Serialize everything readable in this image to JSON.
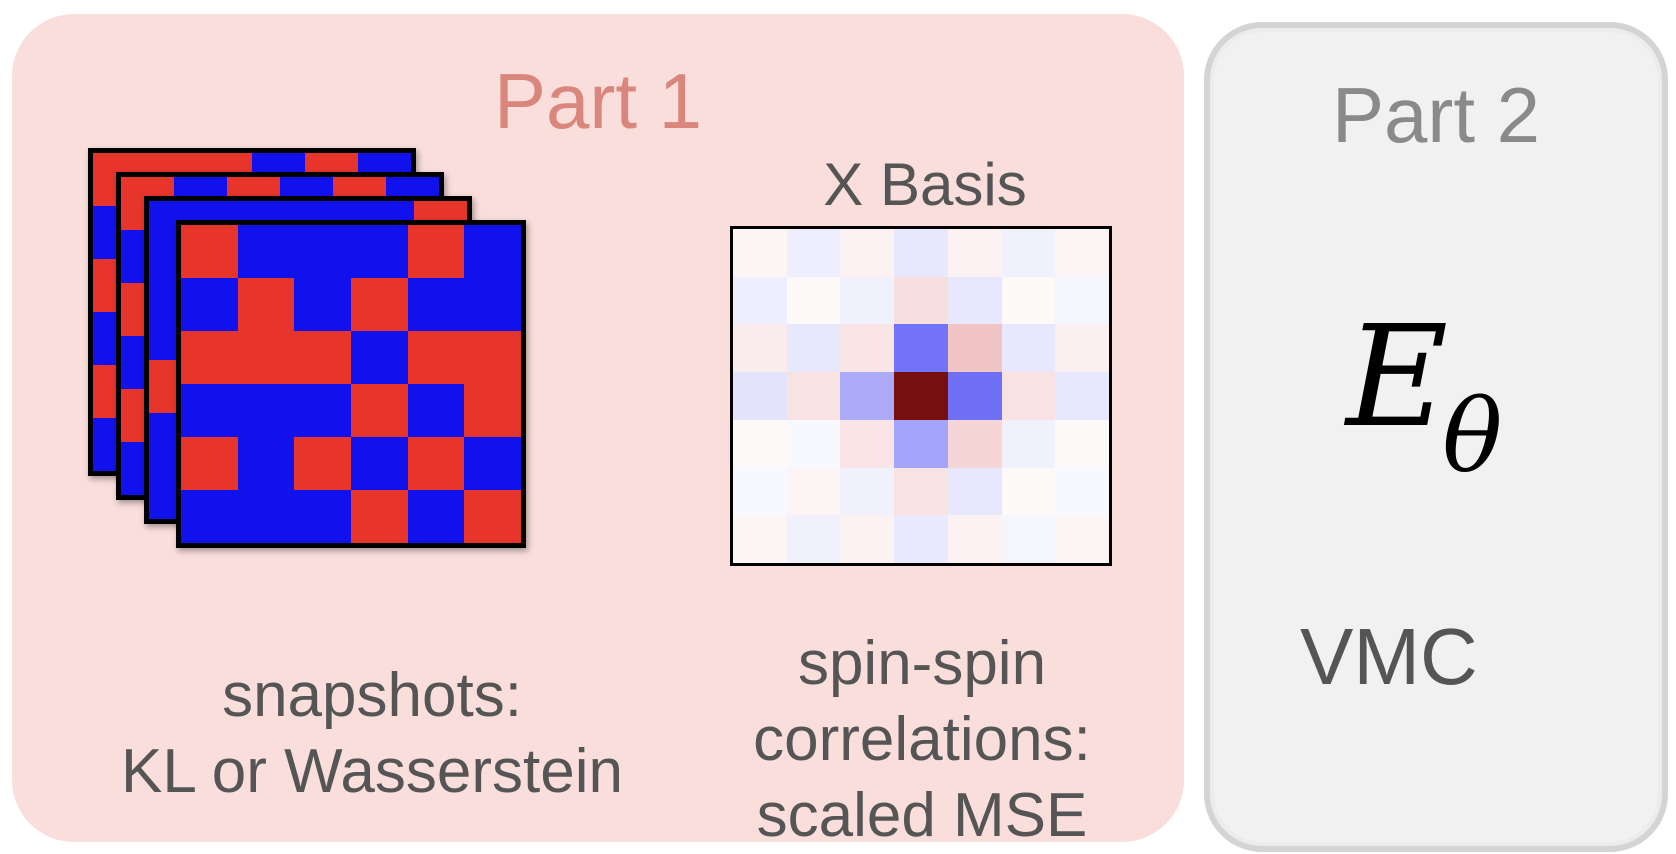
{
  "part1": {
    "title": "Part 1"
  },
  "part2": {
    "title": "Part 2"
  },
  "snapshots": {
    "caption_lines": [
      "snapshots:",
      "KL or Wasserstein"
    ],
    "colors": {
      "up": "#e8352b",
      "down": "#1111ee"
    },
    "front_grid": [
      [
        1,
        0,
        0,
        0,
        1,
        0
      ],
      [
        0,
        1,
        0,
        1,
        0,
        0
      ],
      [
        1,
        1,
        1,
        0,
        1,
        1
      ],
      [
        0,
        0,
        0,
        1,
        0,
        1
      ],
      [
        1,
        0,
        1,
        0,
        1,
        0
      ],
      [
        0,
        0,
        0,
        1,
        0,
        1
      ]
    ],
    "back_grids": [
      [
        [
          1,
          1,
          1,
          0,
          1,
          0
        ],
        [
          0,
          1,
          0,
          1,
          0,
          1
        ],
        [
          1,
          0,
          1,
          0,
          1,
          0
        ],
        [
          0,
          1,
          0,
          1,
          0,
          1
        ],
        [
          1,
          0,
          1,
          0,
          1,
          0
        ],
        [
          0,
          1,
          0,
          1,
          0,
          1
        ]
      ],
      [
        [
          1,
          0,
          1,
          0,
          1,
          0
        ],
        [
          0,
          1,
          0,
          1,
          0,
          1
        ],
        [
          1,
          0,
          1,
          0,
          1,
          0
        ],
        [
          0,
          1,
          0,
          1,
          0,
          1
        ],
        [
          1,
          0,
          1,
          0,
          1,
          0
        ],
        [
          0,
          1,
          0,
          1,
          0,
          1
        ]
      ],
      [
        [
          0,
          0,
          0,
          0,
          0,
          1
        ],
        [
          0,
          1,
          0,
          0,
          0,
          0
        ],
        [
          0,
          1,
          0,
          0,
          1,
          0
        ],
        [
          1,
          0,
          1,
          0,
          0,
          0
        ],
        [
          0,
          1,
          0,
          0,
          0,
          1
        ],
        [
          0,
          0,
          0,
          1,
          0,
          0
        ]
      ]
    ]
  },
  "correlations": {
    "basis_title": "X Basis",
    "caption_lines": [
      "spin-spin",
      "correlations:",
      "scaled MSE"
    ],
    "matrix": [
      [
        0.06,
        -0.1,
        0.08,
        -0.14,
        0.08,
        -0.08,
        0.06
      ],
      [
        -0.1,
        0.04,
        -0.08,
        0.2,
        -0.14,
        0.04,
        -0.06
      ],
      [
        0.12,
        -0.14,
        0.16,
        -0.8,
        0.36,
        -0.14,
        0.1
      ],
      [
        -0.16,
        0.18,
        -0.48,
        1.0,
        -0.82,
        0.18,
        -0.14
      ],
      [
        0.04,
        -0.04,
        0.16,
        -0.52,
        0.26,
        -0.08,
        0.04
      ],
      [
        -0.04,
        0.06,
        -0.08,
        0.18,
        -0.14,
        0.04,
        -0.04
      ],
      [
        0.06,
        -0.08,
        0.08,
        -0.12,
        0.08,
        -0.06,
        0.06
      ]
    ]
  },
  "part2_content": {
    "energy_symbol": "E",
    "energy_subscript": "θ",
    "method": "VMC"
  }
}
